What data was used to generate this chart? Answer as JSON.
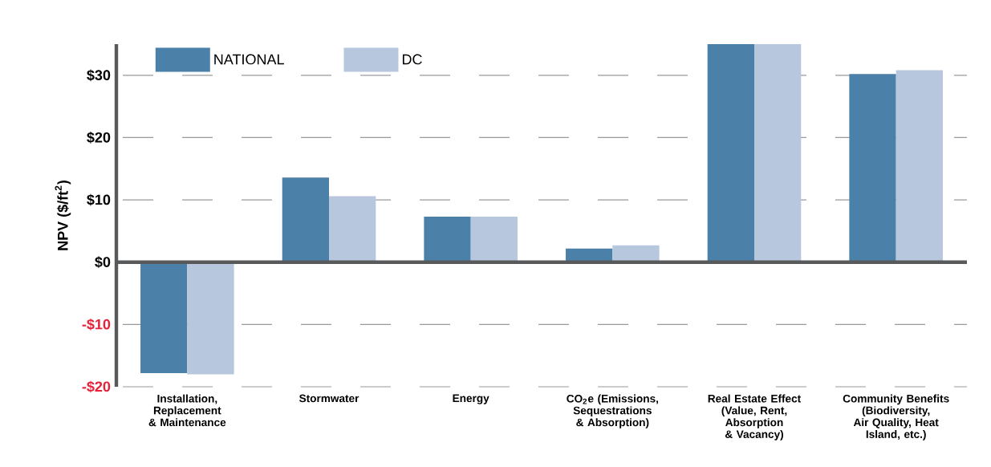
{
  "chart_data": {
    "type": "bar",
    "ylabel": "NPV ($/ft$^{2}$)",
    "categories": [
      "Installation, Replacement & Maintenance",
      "Stormwater",
      "Energy",
      "CO$_{2}$e (Emissions, Sequestrations & Absorption)",
      "Real Estate Effect (Value, Rent, Absorption & Vacancy)",
      "Community Benefits (Biodiversity, Air Quality, Heat Island, etc.)"
    ],
    "series": [
      {
        "name": "NATIONAL",
        "color": "#4b80a9",
        "values": [
          -17.8,
          13.6,
          7.3,
          2.2,
          35,
          30.2
        ]
      },
      {
        "name": "DC",
        "color": "#b7c7de",
        "values": [
          -18.0,
          10.6,
          7.3,
          2.7,
          35,
          30.8
        ]
      }
    ],
    "ylim": [
      -20,
      35
    ],
    "yticks": [
      {
        "value": -20,
        "label": "-$20"
      },
      {
        "value": -10,
        "label": "-$10"
      },
      {
        "value": 0,
        "label": "$0"
      },
      {
        "value": 10,
        "label": "$10"
      },
      {
        "value": 20,
        "label": "$20"
      },
      {
        "value": 30,
        "label": "$30"
      }
    ],
    "grid": "y",
    "legend": "top left"
  }
}
